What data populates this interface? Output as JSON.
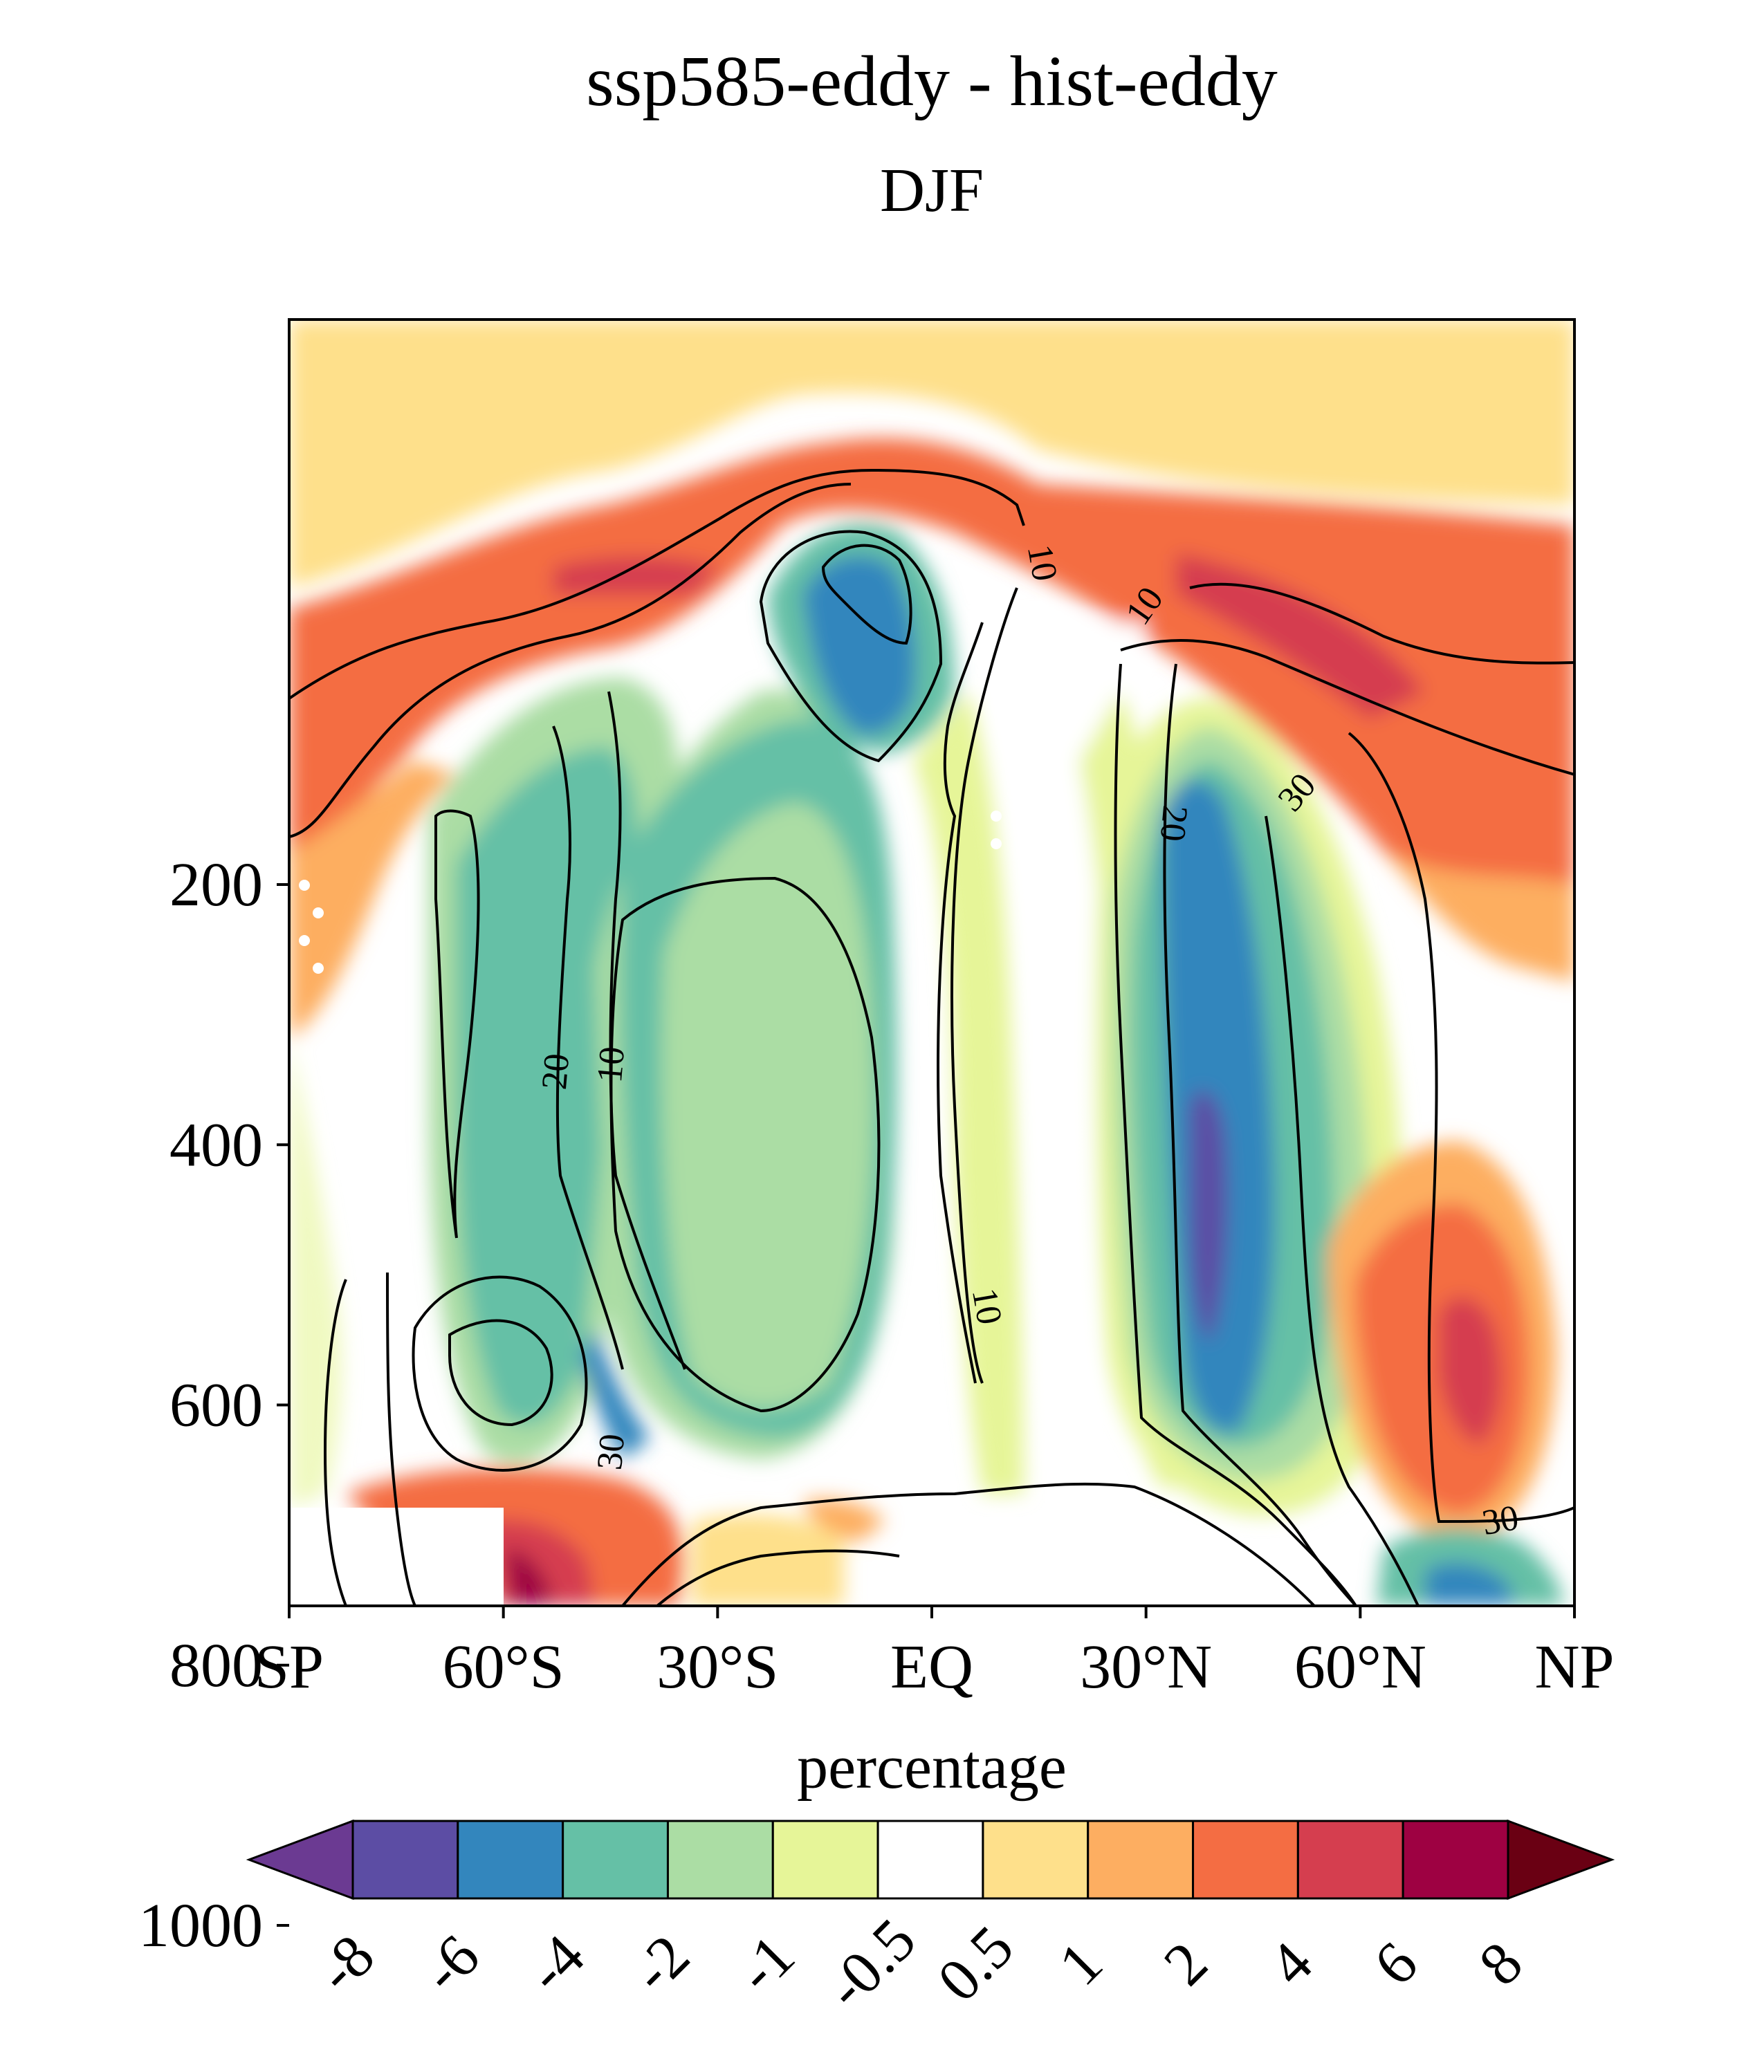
{
  "chart_data": {
    "type": "heatmap",
    "title": "ssp585-eddy - hist-eddy",
    "subtitle": "DJF",
    "x_ticks": [
      "SP",
      "60°S",
      "30°S",
      "EQ",
      "30°N",
      "60°N",
      "NP"
    ],
    "x_tick_values": [
      -90,
      -60,
      -30,
      0,
      30,
      60,
      90
    ],
    "xlim": [
      -90,
      90
    ],
    "y_ticks": [
      "200",
      "400",
      "600",
      "800",
      "1000"
    ],
    "y_tick_values": [
      200,
      400,
      600,
      800,
      1000
    ],
    "ylim": [
      10,
      1000
    ],
    "colorbar": {
      "label": "percentage",
      "tick_labels": [
        "-8",
        "-6",
        "-4",
        "-2",
        "-1",
        "-0.5",
        "0.5",
        "1",
        "2",
        "4",
        "6",
        "8"
      ],
      "colors": [
        "#6b3a92",
        "#5c4da4",
        "#3386bd",
        "#65c0a6",
        "#abdda4",
        "#e6f598",
        "#ffffff",
        "#fee08b",
        "#fdae61",
        "#f46d43",
        "#d53e4f",
        "#9e0142",
        "#6a0013"
      ]
    },
    "contour_labels": [
      "10",
      "10",
      "10",
      "30",
      "20",
      "20",
      "10",
      "30",
      "10",
      "30"
    ]
  }
}
